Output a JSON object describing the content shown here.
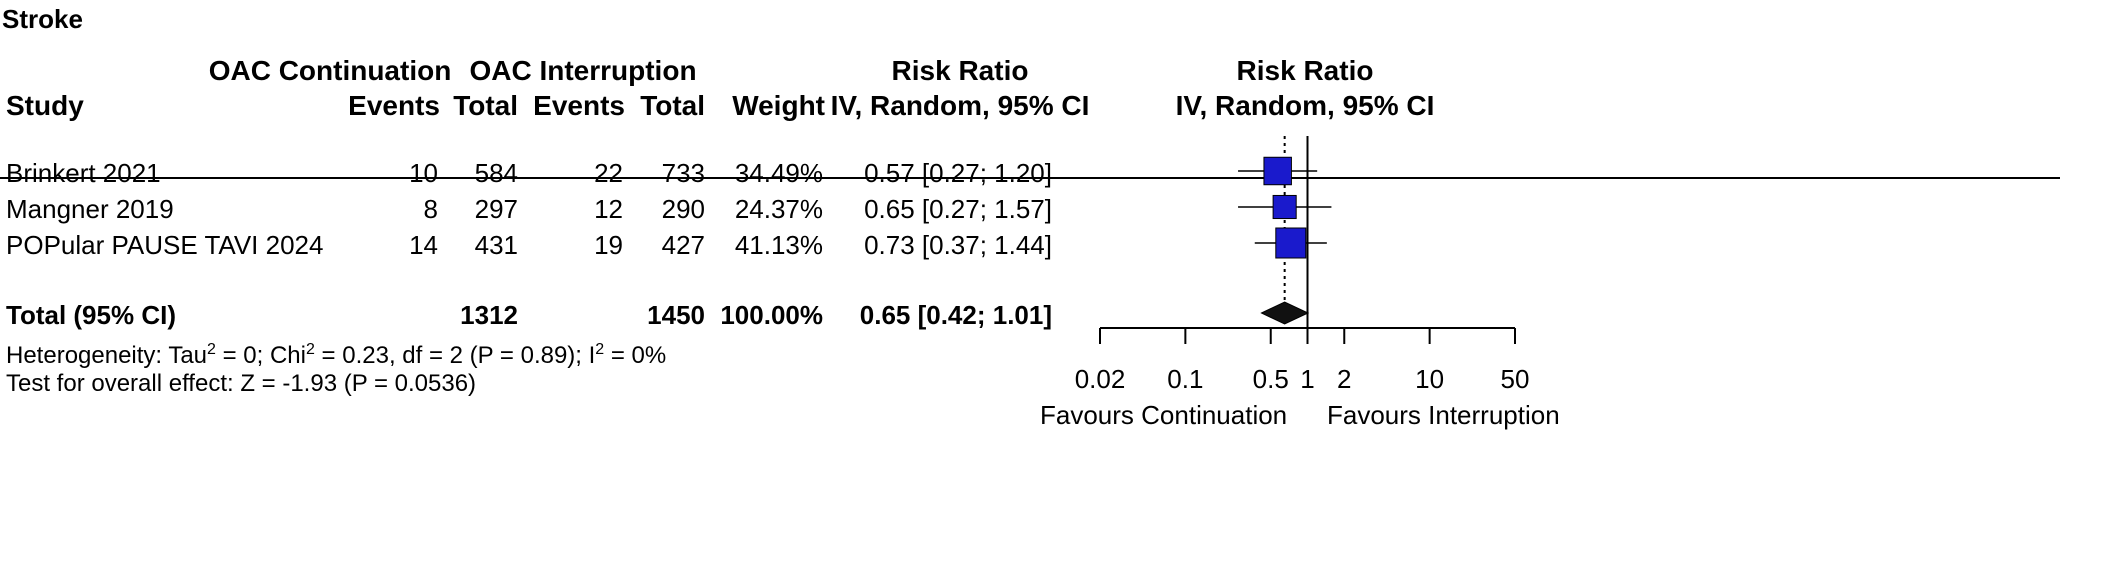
{
  "panel_title": "Stroke",
  "header": {
    "group1": "OAC Continuation",
    "group2": "OAC Interruption",
    "study": "Study",
    "events1": "Events",
    "total1": "Total",
    "events2": "Events",
    "total2": "Total",
    "weight": "Weight",
    "rr_col_title": "Risk Ratio",
    "rr_col_sub": "IV, Random, 95% CI",
    "plot_title": "Risk Ratio",
    "plot_sub": "IV, Random, 95% CI"
  },
  "rows": [
    {
      "study": "Brinkert 2021",
      "events1": "10",
      "total1": "584",
      "events2": "22",
      "total2": "733",
      "weight": "34.49%",
      "rr": "0.57 [0.27; 1.20]"
    },
    {
      "study": "Mangner 2019",
      "events1": "8",
      "total1": "297",
      "events2": "12",
      "total2": "290",
      "weight": "24.37%",
      "rr": "0.65 [0.27; 1.57]"
    },
    {
      "study": "POPular PAUSE TAVI 2024",
      "events1": "14",
      "total1": "431",
      "events2": "19",
      "total2": "427",
      "weight": "41.13%",
      "rr": "0.73 [0.37; 1.44]"
    }
  ],
  "total_row": {
    "study": "Total (95% CI)",
    "total1": "1312",
    "total2": "1450",
    "weight": "100.00%",
    "rr": "0.65 [0.42; 1.01]"
  },
  "heterogeneity": {
    "p1": "Heterogeneity: Tau",
    "sup1": "2",
    "p2": " = 0; Chi",
    "sup2": "2",
    "p3": " = 0.23, df = 2 (P = 0.89); I",
    "sup3": "2",
    "p4": " = 0%"
  },
  "overall_effect": "Test for overall effect: Z = -1.93 (P = 0.0536)",
  "favours_left": "Favours Continuation",
  "favours_right": "Favours Interruption",
  "colors": {
    "box": "#1a1acc",
    "diamond": "#111111",
    "line": "#000000"
  },
  "chart_data": {
    "type": "forest",
    "scale": "log",
    "xlim": [
      0.02,
      50
    ],
    "reference_line": 1,
    "pooled_dotted_line": 0.65,
    "ticks": [
      {
        "value": 0.02,
        "label": "0.02"
      },
      {
        "value": 0.1,
        "label": "0.1"
      },
      {
        "value": 0.5,
        "label": "0.5"
      },
      {
        "value": 1,
        "label": "1"
      },
      {
        "value": 2,
        "label": "2"
      },
      {
        "value": 10,
        "label": "10"
      },
      {
        "value": 50,
        "label": "50"
      }
    ],
    "studies": [
      {
        "name": "Brinkert 2021",
        "rr": 0.57,
        "lower": 0.27,
        "upper": 1.2,
        "weight": 34.49
      },
      {
        "name": "Mangner 2019",
        "rr": 0.65,
        "lower": 0.27,
        "upper": 1.57,
        "weight": 24.37
      },
      {
        "name": "POPular PAUSE TAVI 2024",
        "rr": 0.73,
        "lower": 0.37,
        "upper": 1.44,
        "weight": 41.13
      }
    ],
    "pooled": {
      "rr": 0.65,
      "lower": 0.42,
      "upper": 1.01
    }
  }
}
